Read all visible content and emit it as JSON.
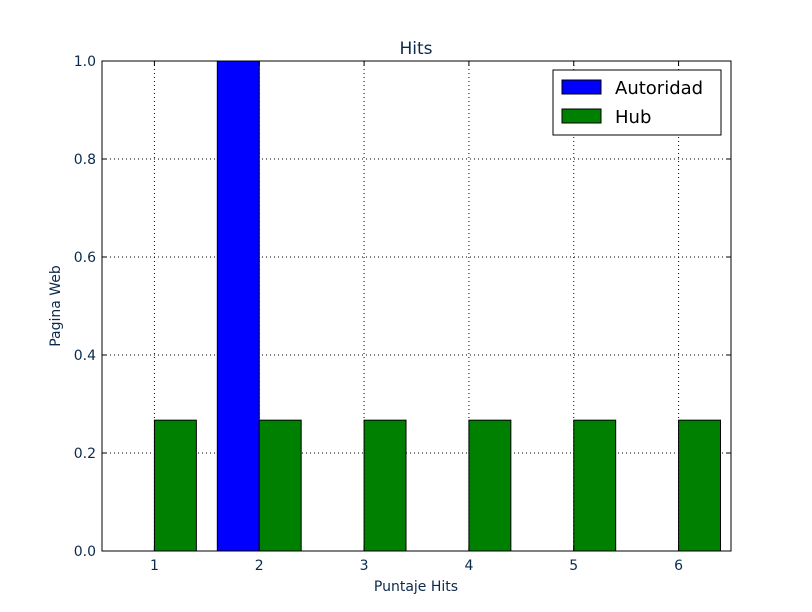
{
  "chart_data": {
    "type": "bar",
    "title": "Hits",
    "xlabel": "Puntaje Hits",
    "ylabel": "Pagina Web",
    "x_ticks": [
      "1",
      "2",
      "3",
      "4",
      "5",
      "6"
    ],
    "y_ticks": [
      "0.0",
      "0.2",
      "0.4",
      "0.6",
      "0.8",
      "1.0"
    ],
    "ylim": [
      0,
      1.0
    ],
    "xlim": [
      0.5,
      6.5
    ],
    "grid": true,
    "legend_position": "top-right",
    "series": [
      {
        "name": "Autoridad",
        "color": "#0000ff",
        "x": [
          1,
          2,
          3,
          4,
          5,
          6
        ],
        "values": [
          0.0,
          1.0,
          0.0,
          0.0,
          0.0,
          0.0
        ]
      },
      {
        "name": "Hub",
        "color": "#008000",
        "x": [
          1,
          2,
          3,
          4,
          5,
          6
        ],
        "values": [
          0.267,
          0.267,
          0.267,
          0.267,
          0.267,
          0.267
        ]
      }
    ]
  }
}
